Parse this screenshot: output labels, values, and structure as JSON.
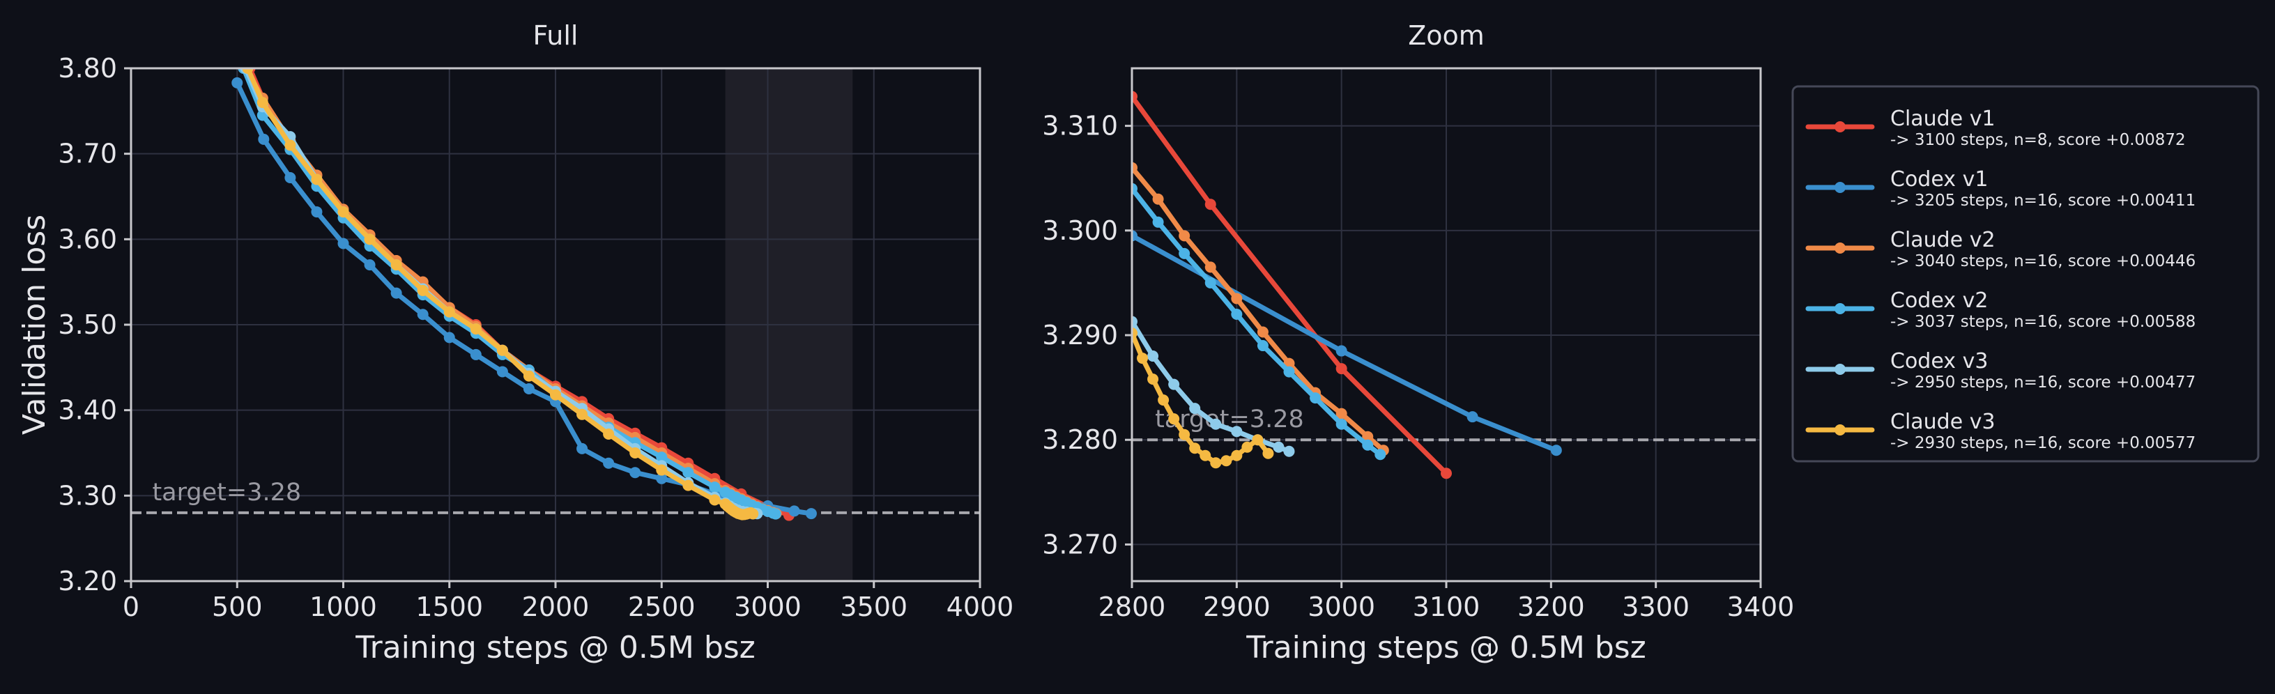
{
  "theme": {
    "background": "#0e1018",
    "axes_face": "#0e1018",
    "spine": "#c8c8cc",
    "grid": "#2e3140",
    "text": "#e6e6ea",
    "muted": "#9a9aa2",
    "highlight_band": "#1f1f28",
    "target_line": "#a8a8ae"
  },
  "legend": {
    "placement": "outside-right",
    "entries": [
      {
        "name": "Claude v1",
        "detail": "-> 3100 steps, n=8, score +0.00872",
        "color": "#e8483a"
      },
      {
        "name": "Codex v1",
        "detail": "-> 3205 steps, n=16, score +0.00411",
        "color": "#3a8fce"
      },
      {
        "name": "Claude v2",
        "detail": "-> 3040 steps, n=16, score +0.00446",
        "color": "#f08a48"
      },
      {
        "name": "Codex v2",
        "detail": "-> 3037 steps, n=16, score +0.00588",
        "color": "#4cb3e6"
      },
      {
        "name": "Codex v3",
        "detail": "-> 2950 steps, n=16, score +0.00477",
        "color": "#8ecbea"
      },
      {
        "name": "Claude v3",
        "detail": "-> 2930 steps, n=16, score +0.00577",
        "color": "#f5b942"
      }
    ]
  },
  "chart_data": [
    {
      "type": "line",
      "title": "Full",
      "xlabel": "Training steps @ 0.5M bsz",
      "ylabel": "Validation loss",
      "xlim": [
        0,
        4000
      ],
      "ylim": [
        3.2,
        3.8
      ],
      "xticks": [
        0,
        500,
        1000,
        1500,
        2000,
        2500,
        3000,
        3500,
        4000
      ],
      "yticks": [
        3.2,
        3.3,
        3.4,
        3.5,
        3.6,
        3.7,
        3.8
      ],
      "grid": true,
      "shaded_x_range": [
        2800,
        3400
      ],
      "target": {
        "value": 3.28,
        "label": "target=3.28",
        "x": 100
      },
      "series": [
        {
          "name": "Claude v1",
          "x": [
            560,
            620,
            750,
            875,
            1000,
            1125,
            1250,
            1375,
            1500,
            1625,
            1750,
            1875,
            2000,
            2125,
            2250,
            2375,
            2500,
            2625,
            2750,
            2875,
            3000,
            3100
          ],
          "y": [
            3.8,
            3.765,
            3.715,
            3.675,
            3.635,
            3.605,
            3.575,
            3.55,
            3.52,
            3.5,
            3.47,
            3.447,
            3.428,
            3.41,
            3.39,
            3.373,
            3.356,
            3.338,
            3.32,
            3.302,
            3.287,
            3.277
          ]
        },
        {
          "name": "Codex v1",
          "x": [
            500,
            625,
            750,
            875,
            1000,
            1125,
            1250,
            1375,
            1500,
            1625,
            1750,
            1875,
            2000,
            2125,
            2250,
            2375,
            2500,
            2625,
            2750,
            2875,
            3000,
            3125,
            3205
          ],
          "y": [
            3.783,
            3.717,
            3.672,
            3.632,
            3.595,
            3.57,
            3.537,
            3.512,
            3.485,
            3.465,
            3.445,
            3.425,
            3.41,
            3.355,
            3.338,
            3.327,
            3.32,
            3.313,
            3.302,
            3.293,
            3.288,
            3.282,
            3.279
          ]
        },
        {
          "name": "Claude v2",
          "x": [
            540,
            620,
            750,
            875,
            1000,
            1125,
            1250,
            1375,
            1500,
            1625,
            1750,
            1875,
            2000,
            2125,
            2250,
            2375,
            2500,
            2625,
            2750,
            2800,
            2825,
            2850,
            2875,
            2900,
            2925,
            2950,
            2975,
            3000,
            3025,
            3040
          ],
          "y": [
            3.8,
            3.765,
            3.715,
            3.675,
            3.635,
            3.605,
            3.575,
            3.55,
            3.52,
            3.498,
            3.47,
            3.447,
            3.425,
            3.405,
            3.385,
            3.368,
            3.35,
            3.332,
            3.314,
            3.306,
            3.303,
            3.2995,
            3.2965,
            3.2935,
            3.2903,
            3.2873,
            3.2845,
            3.2825,
            3.2803,
            3.279
          ]
        },
        {
          "name": "Codex v2",
          "x": [
            530,
            620,
            750,
            875,
            1000,
            1125,
            1250,
            1375,
            1500,
            1625,
            1750,
            1875,
            2000,
            2125,
            2250,
            2375,
            2500,
            2625,
            2750,
            2800,
            2825,
            2850,
            2875,
            2900,
            2925,
            2950,
            2975,
            3000,
            3025,
            3037
          ],
          "y": [
            3.8,
            3.745,
            3.705,
            3.662,
            3.625,
            3.592,
            3.565,
            3.535,
            3.51,
            3.49,
            3.465,
            3.447,
            3.42,
            3.4,
            3.38,
            3.362,
            3.345,
            3.327,
            3.31,
            3.304,
            3.301,
            3.298,
            3.295,
            3.292,
            3.289,
            3.2865,
            3.284,
            3.2815,
            3.2795,
            3.2786
          ]
        },
        {
          "name": "Codex v3",
          "x": [
            540,
            620,
            750,
            875,
            1000,
            1125,
            1250,
            1375,
            1500,
            1625,
            1750,
            1875,
            2000,
            2125,
            2250,
            2375,
            2500,
            2625,
            2750,
            2800,
            2820,
            2840,
            2860,
            2880,
            2900,
            2920,
            2940,
            2950
          ],
          "y": [
            3.8,
            3.755,
            3.72,
            3.67,
            3.632,
            3.6,
            3.57,
            3.542,
            3.515,
            3.495,
            3.47,
            3.443,
            3.422,
            3.402,
            3.378,
            3.355,
            3.335,
            3.315,
            3.298,
            3.2913,
            3.288,
            3.2853,
            3.283,
            3.2815,
            3.2808,
            3.28,
            3.2793,
            3.2789
          ]
        },
        {
          "name": "Claude v3",
          "x": [
            550,
            620,
            750,
            875,
            1000,
            1125,
            1250,
            1375,
            1500,
            1625,
            1750,
            1875,
            2000,
            2125,
            2250,
            2375,
            2500,
            2625,
            2750,
            2800,
            2810,
            2820,
            2830,
            2840,
            2850,
            2860,
            2870,
            2880,
            2890,
            2900,
            2910,
            2920,
            2930
          ],
          "y": [
            3.8,
            3.76,
            3.71,
            3.67,
            3.632,
            3.6,
            3.57,
            3.54,
            3.515,
            3.495,
            3.47,
            3.44,
            3.418,
            3.395,
            3.372,
            3.35,
            3.33,
            3.312,
            3.295,
            3.2902,
            3.2878,
            3.2858,
            3.2838,
            3.282,
            3.2805,
            3.2792,
            3.2785,
            3.2778,
            3.278,
            3.2785,
            3.2793,
            3.28,
            3.2787
          ]
        }
      ]
    },
    {
      "type": "line",
      "title": "Zoom",
      "xlabel": "Training steps @ 0.5M bsz",
      "ylabel": "",
      "xlim": [
        2800,
        3400
      ],
      "ylim": [
        3.2665,
        3.3155
      ],
      "xticks": [
        2800,
        2900,
        3000,
        3100,
        3200,
        3300,
        3400
      ],
      "yticks": [
        3.27,
        3.28,
        3.29,
        3.3,
        3.31
      ],
      "grid": true,
      "target": {
        "value": 3.28,
        "label": "target=3.28",
        "x": 2822
      },
      "series": [
        {
          "name": "Claude v1",
          "x": [
            2800,
            2875,
            3000,
            3100
          ],
          "y": [
            3.3128,
            3.3025,
            3.2868,
            3.2768
          ]
        },
        {
          "name": "Codex v1",
          "x": [
            2800,
            3000,
            3125,
            3205
          ],
          "y": [
            3.2995,
            3.2885,
            3.2822,
            3.279
          ]
        },
        {
          "name": "Claude v2",
          "x": [
            2800,
            2825,
            2850,
            2875,
            2900,
            2925,
            2950,
            2975,
            3000,
            3025,
            3040
          ],
          "y": [
            3.306,
            3.303,
            3.2995,
            3.2965,
            3.2935,
            3.2903,
            3.2873,
            3.2845,
            3.2825,
            3.2803,
            3.279
          ]
        },
        {
          "name": "Codex v2",
          "x": [
            2800,
            2825,
            2850,
            2875,
            2900,
            2925,
            2950,
            2975,
            3000,
            3025,
            3037
          ],
          "y": [
            3.304,
            3.3008,
            3.2978,
            3.295,
            3.292,
            3.289,
            3.2865,
            3.284,
            3.2815,
            3.2795,
            3.2786
          ]
        },
        {
          "name": "Codex v3",
          "x": [
            2800,
            2820,
            2840,
            2860,
            2880,
            2900,
            2920,
            2940,
            2950
          ],
          "y": [
            3.2913,
            3.288,
            3.2853,
            3.283,
            3.2815,
            3.2808,
            3.28,
            3.2793,
            3.2789
          ]
        },
        {
          "name": "Claude v3",
          "x": [
            2800,
            2810,
            2820,
            2830,
            2840,
            2850,
            2860,
            2870,
            2880,
            2890,
            2900,
            2910,
            2920,
            2930
          ],
          "y": [
            3.2902,
            3.2878,
            3.2858,
            3.2838,
            3.282,
            3.2805,
            3.2792,
            3.2785,
            3.2778,
            3.278,
            3.2785,
            3.2793,
            3.28,
            3.2787
          ]
        }
      ]
    }
  ]
}
